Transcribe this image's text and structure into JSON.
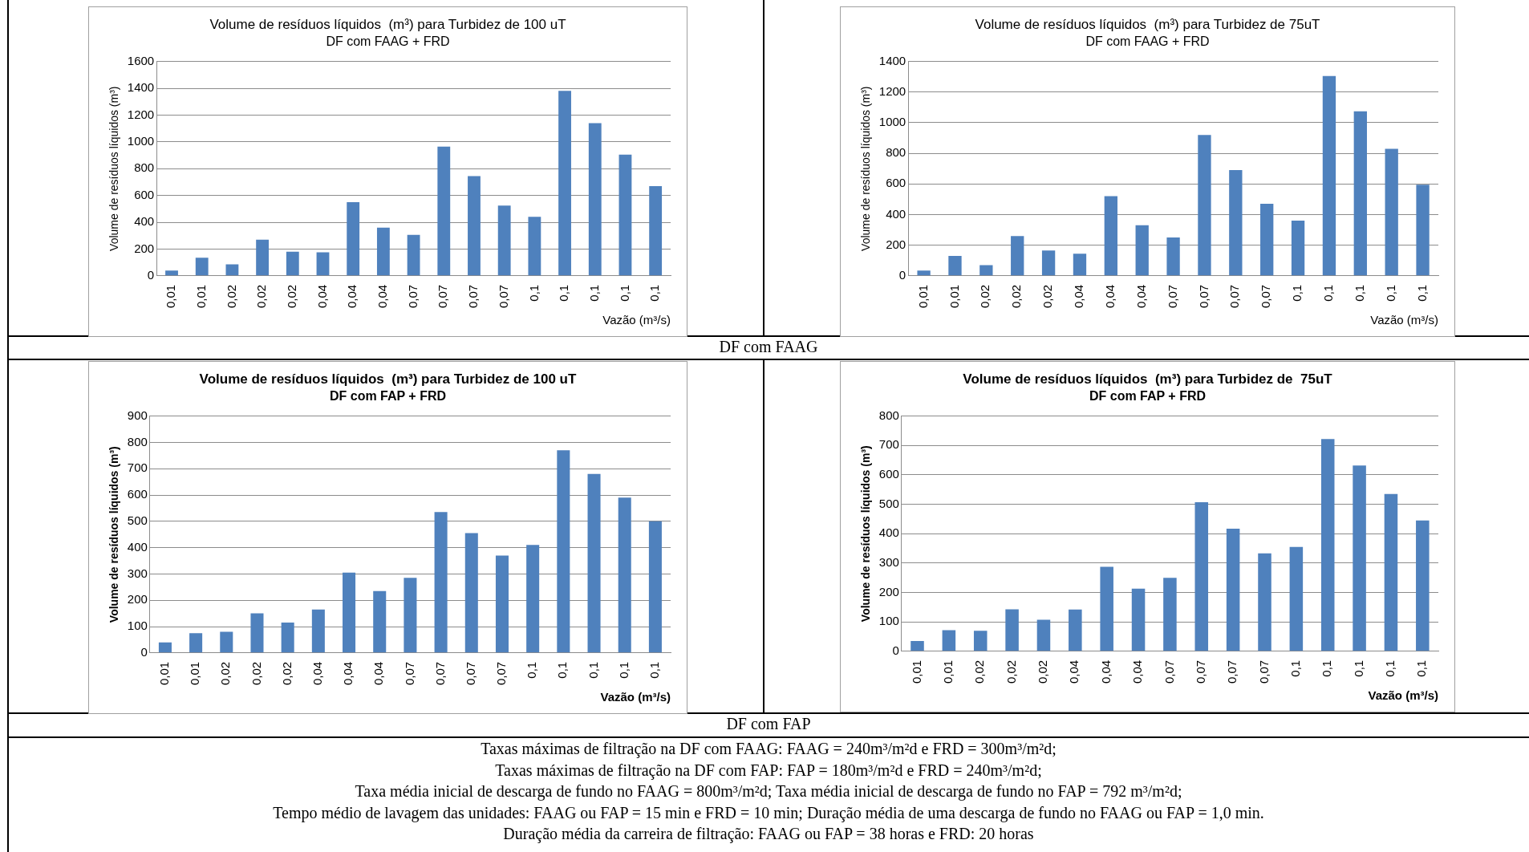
{
  "chart_data": [
    {
      "type": "bar",
      "title": "Volume de resíduos líquidos  (m³) para Turbidez de 100 uT",
      "subtitle": "DF com FAAG + FRD",
      "xlabel": "Vazão (m³/s)",
      "ylabel": "Volume de resíduos líquidos (m³)",
      "categories": [
        "0,01",
        "0,01",
        "0,02",
        "0,02",
        "0,02",
        "0,04",
        "0,04",
        "0,04",
        "0,07",
        "0,07",
        "0,07",
        "0,07",
        "0,1",
        "0,1",
        "0,1",
        "0,1",
        "0,1"
      ],
      "values": [
        40,
        135,
        85,
        270,
        180,
        175,
        550,
        360,
        305,
        965,
        745,
        525,
        440,
        1380,
        1140,
        905,
        670
      ],
      "color": "#4f81bd",
      "ylim": [
        0,
        1600
      ],
      "yticks": [
        0,
        200,
        400,
        600,
        800,
        1000,
        1200,
        1400,
        1600
      ],
      "grid": "y",
      "annotations": [
        "DF com FAAG"
      ]
    },
    {
      "type": "bar",
      "title": "Volume de resíduos líquidos  (m³) para Turbidez de 75uT",
      "subtitle": "DF com FAAG + FRD",
      "xlabel": "Vazão (m³/s)",
      "ylabel": "Volume de resíduos líquidos (m³)",
      "categories": [
        "0,01",
        "0,01",
        "0,02",
        "0,02",
        "0,02",
        "0,04",
        "0,04",
        "0,04",
        "0,07",
        "0,07",
        "0,07",
        "0,07",
        "0,1",
        "0,1",
        "0,1",
        "0,1",
        "0,1"
      ],
      "values": [
        35,
        130,
        70,
        260,
        165,
        145,
        520,
        330,
        250,
        920,
        690,
        470,
        360,
        1305,
        1075,
        830,
        595
      ],
      "color": "#4f81bd",
      "ylim": [
        0,
        1400
      ],
      "yticks": [
        0,
        200,
        400,
        600,
        800,
        1000,
        1200,
        1400
      ],
      "grid": "y"
    },
    {
      "type": "bar",
      "title": "Volume de resíduos líquidos  (m³) para Turbidez de 100 uT",
      "subtitle": "DF com FAP + FRD",
      "xlabel": "Vazão (m³/s)",
      "ylabel": "Volume de resíduos líquidos (m³)",
      "categories": [
        "0,01",
        "0,01",
        "0,02",
        "0,02",
        "0,02",
        "0,04",
        "0,04",
        "0,04",
        "0,07",
        "0,07",
        "0,07",
        "0,07",
        "0,1",
        "0,1",
        "0,1",
        "0,1",
        "0,1"
      ],
      "values": [
        40,
        75,
        80,
        150,
        115,
        165,
        305,
        235,
        285,
        535,
        455,
        370,
        410,
        770,
        680,
        590,
        500
      ],
      "color": "#4f81bd",
      "ylim": [
        0,
        900
      ],
      "yticks": [
        0,
        100,
        200,
        300,
        400,
        500,
        600,
        700,
        800,
        900
      ],
      "grid": "y",
      "annotations": [
        "DF com FAP"
      ]
    },
    {
      "type": "bar",
      "title": "Volume de resíduos líquidos  (m³) para Turbidez de  75uT",
      "subtitle": "DF com FAP + FRD",
      "xlabel": "Vazão (m³/s)",
      "ylabel": "Volume de resíduos líquidos (m³)",
      "categories": [
        "0,01",
        "0,01",
        "0,02",
        "0,02",
        "0,02",
        "0,04",
        "0,04",
        "0,04",
        "0,07",
        "0,07",
        "0,07",
        "0,07",
        "0,1",
        "0,1",
        "0,1",
        "0,1",
        "0,1"
      ],
      "values": [
        35,
        72,
        70,
        143,
        107,
        142,
        287,
        213,
        250,
        507,
        417,
        333,
        355,
        722,
        632,
        535,
        445
      ],
      "color": "#4f81bd",
      "ylim": [
        0,
        800
      ],
      "yticks": [
        0,
        100,
        200,
        300,
        400,
        500,
        600,
        700,
        800
      ],
      "grid": "y",
      "annotations": [
        "Taxas máximas de filtração na DF com FAAG: FAAG = 240m³/m²d e FRD = 300m³/m²d;",
        "Taxas máximas de filtração na DF com FAP: FAP  = 180m³/m²d e FRD = 240m³/m²d;",
        "Taxa média inicial de descarga de fundo no FAAG = 800m³/m²d; Taxa média inicial de descarga de fundo no FAP = 792 m³/m²d;",
        "Tempo médio de lavagem das unidades: FAAG ou FAP  = 15 min e FRD = 10 min; Duração média de uma descarga de fundo no FAAG ou FAP  = 1,0 min.",
        "Duração média da carreira de filtração: FAAG ou FAP = 38 horas e FRD: 20 horas"
      ]
    }
  ]
}
